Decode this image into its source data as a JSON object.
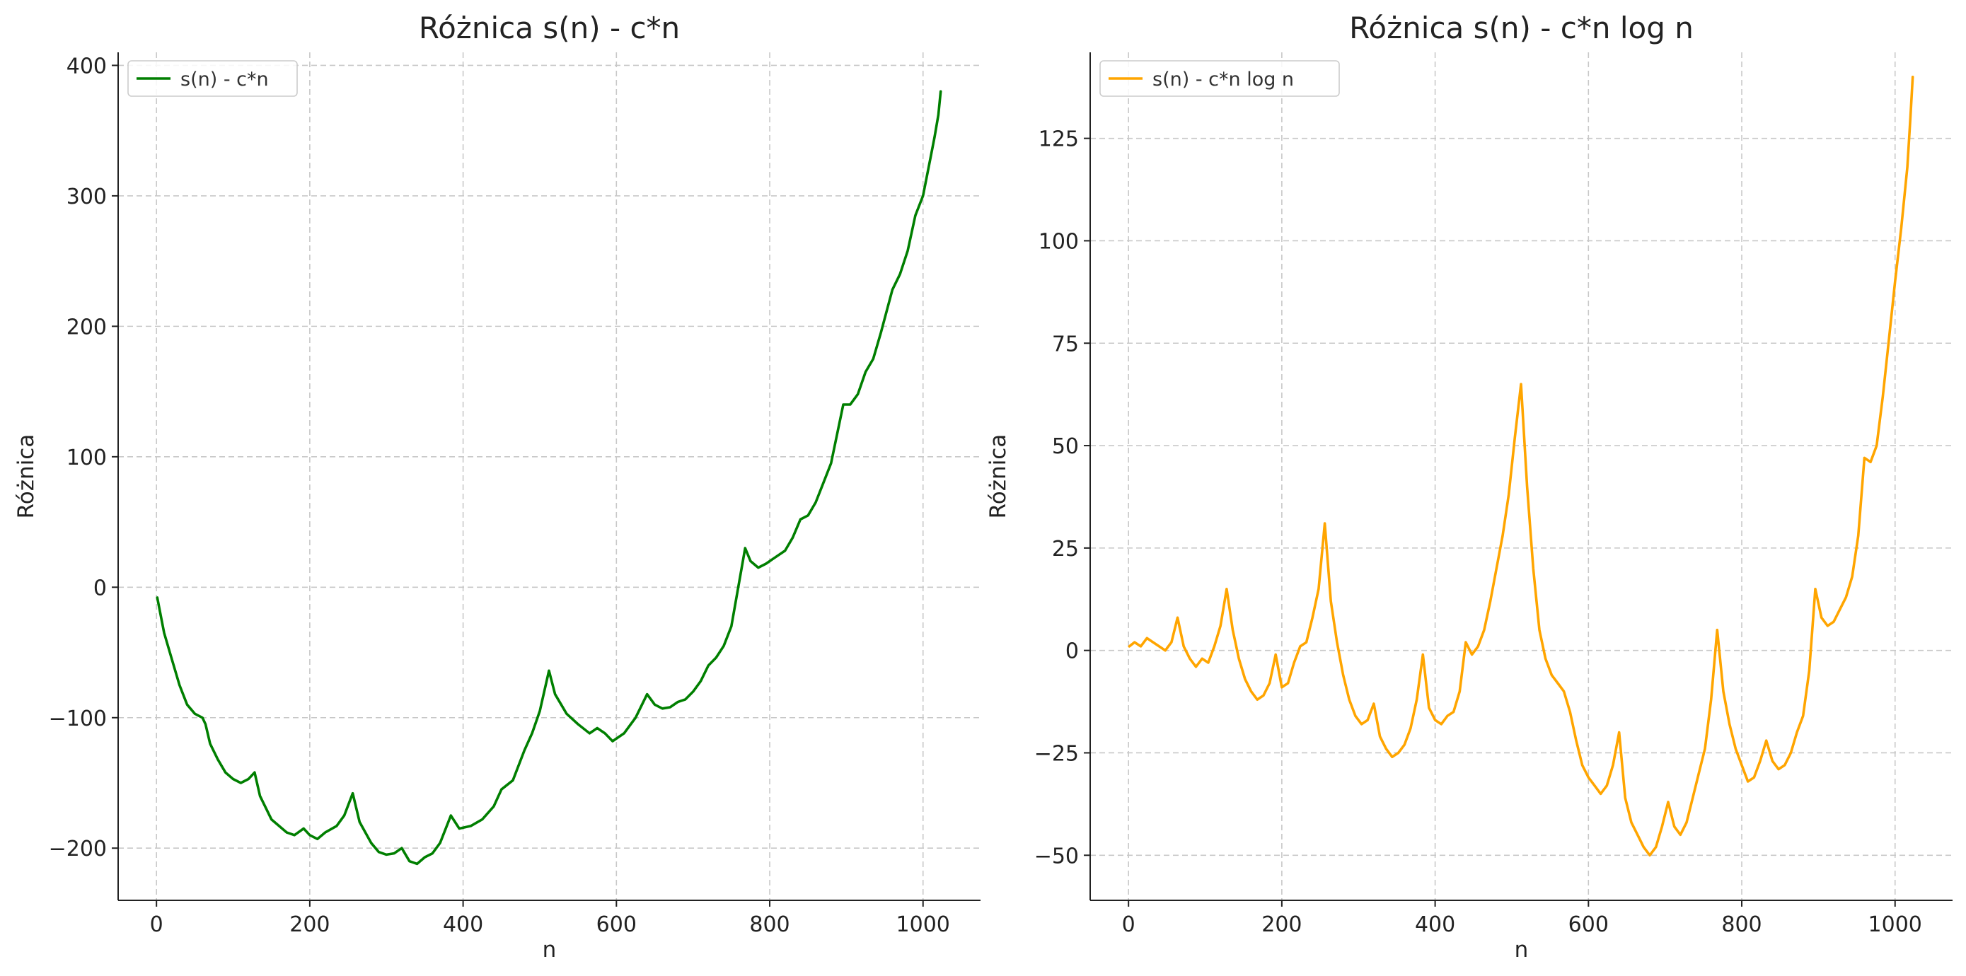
{
  "chart_data": [
    {
      "type": "line",
      "title": "Różnica s(n) - c*n",
      "xlabel": "n",
      "ylabel": "Różnica",
      "xlim": [
        -50,
        1075
      ],
      "ylim": [
        -240,
        410
      ],
      "xticks": [
        0,
        200,
        400,
        600,
        800,
        1000
      ],
      "yticks": [
        -200,
        -100,
        0,
        100,
        200,
        300,
        400
      ],
      "xtick_labels": [
        "0",
        "200",
        "400",
        "600",
        "800",
        "1000"
      ],
      "ytick_labels": [
        "−200",
        "−100",
        "0",
        "100",
        "200",
        "300",
        "400"
      ],
      "grid": true,
      "legend": "top-left",
      "series": [
        {
          "name": "s(n) - c*n",
          "color": "#007f00",
          "x": [
            1,
            10,
            20,
            30,
            40,
            50,
            60,
            64,
            70,
            80,
            90,
            100,
            110,
            120,
            128,
            135,
            150,
            170,
            180,
            192,
            200,
            210,
            220,
            235,
            245,
            256,
            265,
            280,
            290,
            300,
            310,
            320,
            330,
            340,
            350,
            360,
            370,
            384,
            395,
            410,
            425,
            440,
            450,
            465,
            480,
            490,
            500,
            512,
            520,
            535,
            550,
            565,
            575,
            585,
            595,
            610,
            625,
            640,
            650,
            660,
            670,
            680,
            690,
            700,
            710,
            720,
            730,
            740,
            750,
            768,
            775,
            785,
            795,
            805,
            820,
            830,
            840,
            850,
            860,
            870,
            880,
            896,
            905,
            915,
            925,
            935,
            945,
            960,
            970,
            980,
            990,
            1000,
            1010,
            1015,
            1020,
            1023
          ],
          "y": [
            -8,
            -35,
            -55,
            -75,
            -90,
            -97,
            -100,
            -105,
            -120,
            -132,
            -142,
            -147,
            -150,
            -147,
            -142,
            -160,
            -178,
            -188,
            -190,
            -185,
            -190,
            -193,
            -188,
            -183,
            -175,
            -158,
            -180,
            -196,
            -203,
            -205,
            -204,
            -200,
            -210,
            -212,
            -207,
            -204,
            -196,
            -175,
            -185,
            -183,
            -178,
            -168,
            -155,
            -148,
            -125,
            -112,
            -95,
            -64,
            -82,
            -97,
            -105,
            -112,
            -108,
            -112,
            -118,
            -112,
            -100,
            -82,
            -90,
            -93,
            -92,
            -88,
            -86,
            -80,
            -72,
            -60,
            -54,
            -45,
            -30,
            30,
            20,
            15,
            18,
            22,
            28,
            38,
            52,
            55,
            65,
            80,
            95,
            140,
            140,
            148,
            165,
            175,
            195,
            228,
            240,
            258,
            285,
            300,
            330,
            345,
            362,
            380
          ]
        }
      ]
    },
    {
      "type": "line",
      "title": "Różnica s(n) - c*n log n",
      "xlabel": "n",
      "ylabel": "Różnica",
      "xlim": [
        -50,
        1075
      ],
      "ylim": [
        -61,
        146
      ],
      "xticks": [
        0,
        200,
        400,
        600,
        800,
        1000
      ],
      "yticks": [
        -50,
        -25,
        0,
        25,
        50,
        75,
        100,
        125
      ],
      "xtick_labels": [
        "0",
        "200",
        "400",
        "600",
        "800",
        "1000"
      ],
      "ytick_labels": [
        "−50",
        "−25",
        "0",
        "25",
        "50",
        "75",
        "100",
        "125"
      ],
      "grid": true,
      "legend": "top-left",
      "series": [
        {
          "name": "s(n) - c*n log n",
          "color": "#ffa500",
          "x": [
            1,
            8,
            16,
            24,
            32,
            40,
            48,
            56,
            64,
            72,
            80,
            88,
            96,
            104,
            112,
            120,
            128,
            136,
            144,
            152,
            160,
            168,
            176,
            184,
            192,
            200,
            208,
            216,
            224,
            232,
            240,
            248,
            256,
            264,
            272,
            280,
            288,
            296,
            304,
            312,
            320,
            328,
            336,
            344,
            352,
            360,
            368,
            376,
            384,
            392,
            400,
            408,
            416,
            424,
            432,
            440,
            448,
            456,
            464,
            472,
            480,
            488,
            496,
            504,
            512,
            520,
            528,
            536,
            544,
            552,
            560,
            568,
            576,
            584,
            592,
            600,
            608,
            616,
            624,
            632,
            640,
            648,
            656,
            664,
            672,
            680,
            688,
            696,
            704,
            712,
            720,
            728,
            736,
            744,
            752,
            760,
            768,
            776,
            784,
            792,
            800,
            808,
            816,
            824,
            832,
            840,
            848,
            856,
            864,
            872,
            880,
            888,
            896,
            904,
            912,
            920,
            928,
            936,
            944,
            952,
            960,
            968,
            976,
            984,
            992,
            1000,
            1008,
            1016,
            1020,
            1023
          ],
          "y": [
            1,
            2,
            1,
            3,
            2,
            1,
            0,
            2,
            8,
            1,
            -2,
            -4,
            -2,
            -3,
            1,
            6,
            15,
            5,
            -2,
            -7,
            -10,
            -12,
            -11,
            -8,
            -1,
            -9,
            -8,
            -3,
            1,
            2,
            8,
            15,
            31,
            12,
            2,
            -6,
            -12,
            -16,
            -18,
            -17,
            -13,
            -21,
            -24,
            -26,
            -25,
            -23,
            -19,
            -12,
            -1,
            -14,
            -17,
            -18,
            -16,
            -15,
            -10,
            2,
            -1,
            1,
            5,
            12,
            20,
            28,
            38,
            52,
            65,
            40,
            20,
            5,
            -2,
            -6,
            -8,
            -10,
            -15,
            -22,
            -28,
            -31,
            -33,
            -35,
            -33,
            -28,
            -20,
            -36,
            -42,
            -45,
            -48,
            -50,
            -48,
            -43,
            -37,
            -43,
            -45,
            -42,
            -36,
            -30,
            -24,
            -12,
            5,
            -10,
            -18,
            -24,
            -28,
            -32,
            -31,
            -27,
            -22,
            -27,
            -29,
            -28,
            -25,
            -20,
            -16,
            -5,
            15,
            8,
            6,
            7,
            10,
            13,
            18,
            28,
            47,
            46,
            50,
            62,
            76,
            90,
            103,
            118,
            130,
            140
          ]
        }
      ]
    }
  ]
}
